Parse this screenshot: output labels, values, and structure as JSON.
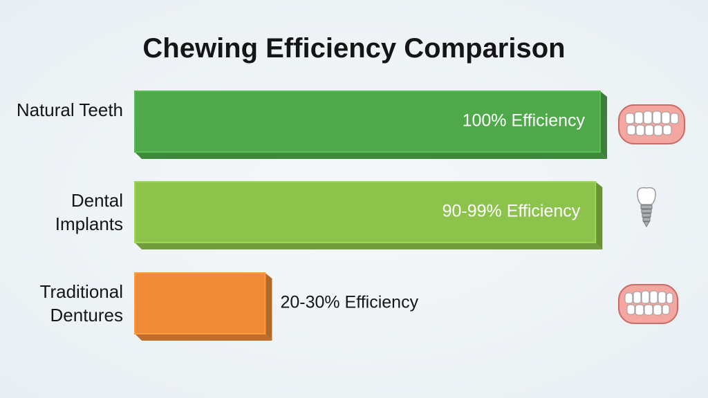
{
  "chart_data": {
    "type": "bar",
    "title": "Chewing Efficiency Comparison",
    "categories": [
      "Natural Teeth",
      "Dental Implants",
      "Traditional Dentures"
    ],
    "values": [
      100,
      99,
      28
    ],
    "value_labels": [
      "100% Efficiency",
      "90-99% Efficiency",
      "20-30% Efficiency"
    ],
    "colors": [
      "#4fa94a",
      "#8cc34b",
      "#ef8a36"
    ]
  }
}
